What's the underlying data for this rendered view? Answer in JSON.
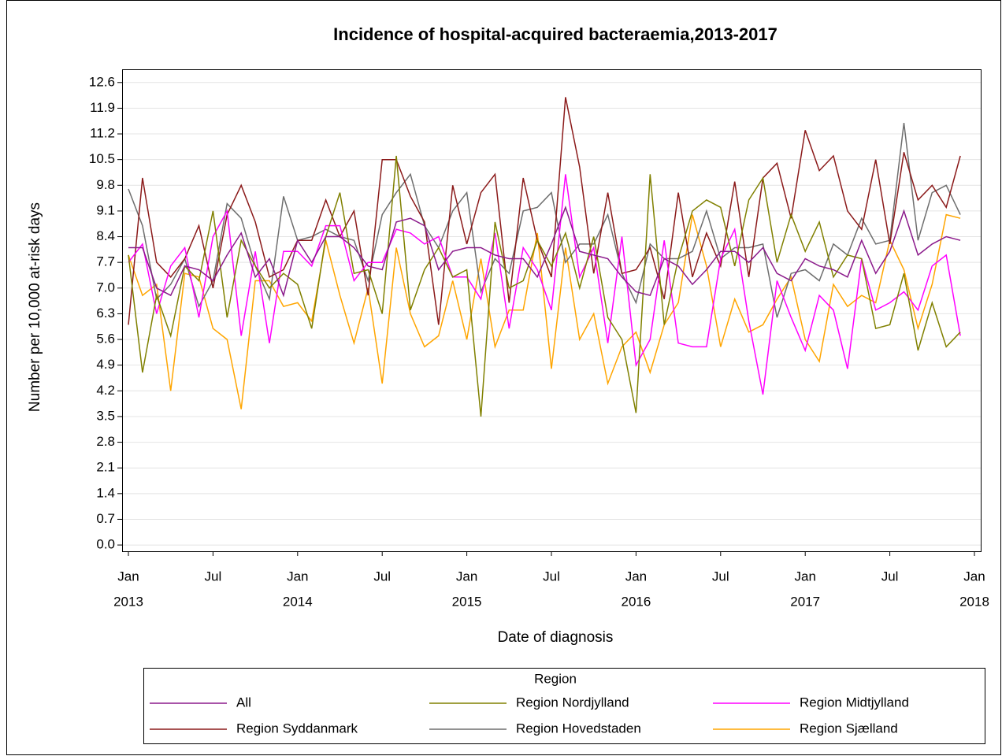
{
  "chart_data": {
    "type": "line",
    "title": "Incidence of hospital-acquired bacteraemia,2013-2017",
    "x_label": "Date of diagnosis",
    "y_label": "Number per 10,000 at-risk days",
    "legend_title": "Region",
    "legend": "bottom",
    "grid": true,
    "x": [
      "2013-01",
      "2013-02",
      "2013-03",
      "2013-04",
      "2013-05",
      "2013-06",
      "2013-07",
      "2013-08",
      "2013-09",
      "2013-10",
      "2013-11",
      "2013-12",
      "2014-01",
      "2014-02",
      "2014-03",
      "2014-04",
      "2014-05",
      "2014-06",
      "2014-07",
      "2014-08",
      "2014-09",
      "2014-10",
      "2014-11",
      "2014-12",
      "2015-01",
      "2015-02",
      "2015-03",
      "2015-04",
      "2015-05",
      "2015-06",
      "2015-07",
      "2015-08",
      "2015-09",
      "2015-10",
      "2015-11",
      "2015-12",
      "2016-01",
      "2016-02",
      "2016-03",
      "2016-04",
      "2016-05",
      "2016-06",
      "2016-07",
      "2016-08",
      "2016-09",
      "2016-10",
      "2016-11",
      "2016-12",
      "2017-01",
      "2017-02",
      "2017-03",
      "2017-04",
      "2017-05",
      "2017-06",
      "2017-07",
      "2017-08",
      "2017-09",
      "2017-10",
      "2017-11",
      "2017-12"
    ],
    "xlim": [
      "2013-01",
      "2018-01"
    ],
    "xticks": [
      {
        "value": "2013-01",
        "label": [
          "Jan",
          "2013"
        ]
      },
      {
        "value": "2013-07",
        "label": "Jul"
      },
      {
        "value": "2014-01",
        "label": [
          "Jan",
          "2014"
        ]
      },
      {
        "value": "2014-07",
        "label": "Jul"
      },
      {
        "value": "2015-01",
        "label": [
          "Jan",
          "2015"
        ]
      },
      {
        "value": "2015-07",
        "label": "Jul"
      },
      {
        "value": "2016-01",
        "label": [
          "Jan",
          "2016"
        ]
      },
      {
        "value": "2016-07",
        "label": "Jul"
      },
      {
        "value": "2017-01",
        "label": [
          "Jan",
          "2017"
        ]
      },
      {
        "value": "2017-07",
        "label": "Jul"
      },
      {
        "value": "2018-01",
        "label": [
          "Jan",
          "2018"
        ]
      }
    ],
    "ylim": [
      -0.17,
      12.96
    ],
    "yticks": [
      {
        "value": 0,
        "label": "0.0"
      },
      0.7,
      1.4,
      2.1,
      2.8,
      3.5,
      4.2,
      4.9,
      5.6,
      6.3,
      {
        "value": 7,
        "label": "7.0"
      },
      7.7,
      8.4,
      9.1,
      9.8,
      10.5,
      11.2,
      11.9,
      12.6
    ],
    "series": [
      {
        "name": "All",
        "color": "#8b1a8b",
        "values": [
          8.1,
          8.1,
          7.0,
          6.8,
          7.6,
          7.5,
          7.2,
          7.9,
          8.5,
          7.3,
          7.8,
          6.8,
          8.3,
          7.7,
          8.4,
          8.4,
          8.1,
          7.6,
          7.5,
          8.8,
          8.9,
          8.7,
          7.5,
          8.0,
          8.1,
          8.1,
          7.9,
          7.8,
          7.8,
          7.3,
          8.2,
          9.2,
          8.0,
          7.9,
          7.8,
          7.3,
          6.9,
          6.8,
          7.8,
          7.6,
          7.1,
          7.5,
          8.0,
          8.0,
          7.7,
          8.1,
          7.4,
          7.2,
          7.8,
          7.6,
          7.5,
          7.3,
          8.3,
          7.4,
          8.0,
          9.1,
          7.9,
          8.2,
          8.4,
          8.3
        ]
      },
      {
        "name": "Region Nordjylland",
        "color": "#808000",
        "values": [
          7.9,
          4.7,
          6.8,
          5.7,
          7.6,
          7.2,
          9.1,
          6.2,
          8.3,
          7.6,
          7.0,
          7.4,
          7.1,
          5.9,
          8.4,
          9.6,
          7.4,
          7.5,
          6.3,
          10.6,
          6.4,
          7.5,
          8.1,
          7.3,
          7.5,
          3.5,
          8.8,
          7.0,
          7.2,
          8.3,
          7.6,
          8.5,
          7.0,
          8.4,
          6.2,
          5.6,
          3.6,
          10.1,
          6.0,
          7.8,
          9.1,
          9.4,
          9.2,
          7.6,
          9.4,
          10.0,
          7.7,
          9.0,
          8.0,
          8.8,
          7.3,
          7.9,
          7.8,
          5.9,
          6.0,
          7.4,
          5.3,
          6.6,
          5.4,
          5.8
        ]
      },
      {
        "name": "Region Midtjylland",
        "color": "#ff00ff",
        "values": [
          7.7,
          8.2,
          6.3,
          7.6,
          8.1,
          6.2,
          8.4,
          9.1,
          5.7,
          8.0,
          5.5,
          8.0,
          8.0,
          7.6,
          8.7,
          8.7,
          7.2,
          7.7,
          7.7,
          8.6,
          8.5,
          8.2,
          8.4,
          7.3,
          7.3,
          6.7,
          8.5,
          5.9,
          8.1,
          7.5,
          6.4,
          10.1,
          7.3,
          8.1,
          5.5,
          8.4,
          4.9,
          5.6,
          8.3,
          5.5,
          5.4,
          5.4,
          7.8,
          8.6,
          6.1,
          4.1,
          7.2,
          6.2,
          5.3,
          6.8,
          6.4,
          4.8,
          7.8,
          6.4,
          6.6,
          6.9,
          6.4,
          7.6,
          7.9,
          5.7
        ]
      },
      {
        "name": "Region Syddanmark",
        "color": "#8b1a1a",
        "values": [
          6.0,
          10.0,
          7.7,
          7.3,
          7.8,
          8.7,
          7.0,
          9.0,
          9.8,
          8.8,
          7.3,
          7.5,
          8.3,
          8.3,
          9.4,
          8.4,
          9.1,
          6.8,
          10.5,
          10.5,
          9.5,
          8.8,
          6.0,
          9.8,
          8.2,
          9.6,
          10.1,
          6.6,
          10.0,
          8.3,
          7.3,
          12.2,
          10.3,
          7.4,
          9.6,
          7.4,
          7.5,
          8.1,
          6.7,
          9.6,
          7.3,
          8.5,
          7.6,
          9.9,
          7.3,
          10.0,
          10.4,
          8.9,
          11.3,
          10.2,
          10.6,
          9.1,
          8.6,
          10.5,
          8.2,
          10.7,
          9.4,
          9.8,
          9.2,
          10.6
        ]
      },
      {
        "name": "Region Hovedstaden",
        "color": "#6e6e6e",
        "values": [
          9.7,
          8.7,
          6.7,
          7.1,
          7.8,
          6.5,
          7.2,
          9.3,
          8.9,
          7.6,
          6.7,
          9.5,
          8.3,
          8.4,
          8.6,
          8.4,
          8.3,
          7.2,
          9.0,
          9.6,
          10.1,
          8.7,
          8.1,
          9.1,
          9.6,
          6.9,
          7.8,
          7.4,
          9.1,
          9.2,
          9.6,
          7.7,
          8.2,
          8.2,
          9.0,
          7.4,
          6.6,
          8.2,
          7.8,
          7.8,
          8.0,
          9.1,
          7.8,
          8.1,
          8.1,
          8.2,
          6.2,
          7.4,
          7.5,
          7.2,
          8.2,
          7.9,
          8.9,
          8.2,
          8.3,
          11.5,
          8.3,
          9.6,
          9.8,
          9.0
        ]
      },
      {
        "name": "Region Sjælland",
        "color": "#ffa500",
        "values": [
          7.9,
          6.8,
          7.1,
          4.2,
          7.4,
          7.3,
          5.9,
          5.6,
          3.7,
          7.2,
          7.2,
          6.5,
          6.6,
          6.1,
          8.3,
          6.8,
          5.5,
          7.0,
          4.4,
          8.1,
          6.3,
          5.4,
          5.7,
          7.2,
          5.6,
          7.8,
          5.4,
          6.4,
          6.4,
          8.5,
          4.8,
          8.1,
          5.6,
          6.3,
          4.4,
          5.4,
          5.8,
          4.7,
          6.0,
          6.6,
          9.0,
          7.6,
          5.4,
          6.7,
          5.8,
          6.0,
          6.7,
          7.3,
          5.6,
          5.0,
          7.1,
          6.5,
          6.8,
          6.6,
          8.3,
          7.5,
          5.9,
          7.1,
          9.0,
          8.9
        ]
      }
    ]
  }
}
